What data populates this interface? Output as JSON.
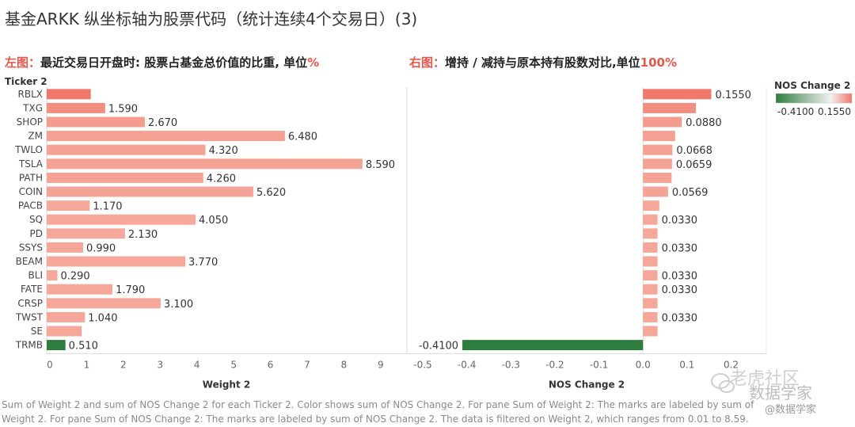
{
  "title": "基金ARKK 纵坐标轴为股票代码（统计连续4个交易日）(3)",
  "subtitle_left": {
    "prefix": "左图：",
    "text": "最近交易日开盘时: 股票占基金总价值的比重, 单位",
    "unit": "%"
  },
  "subtitle_right": {
    "prefix": "右图：",
    "text": "增持 / 减持与原本持有股数对比,单位",
    "unit": "100%"
  },
  "legend": {
    "title": "NOS Change 2",
    "min_label": "-0.4100",
    "max_label": "0.1550",
    "color_min": "#2e7d3e",
    "color_mid": "#f2f2f2",
    "color_max": "#f0786a"
  },
  "footnote": "Sum of Weight 2 and sum of NOS Change 2 for each Ticker 2.  Color shows sum of NOS Change 2.  For pane Sum of Weight 2:  The marks are labeled by sum of Weight 2.  For pane Sum of NOS Change 2:  The marks are labeled by sum of NOS Change 2. The data is filtered on Weight 2, which ranges from 0.01 to 8.59.",
  "watermark": {
    "line1": "老虎社区",
    "line2": "数据学家",
    "line3": "@数据学家"
  },
  "chart_data": [
    {
      "type": "bar",
      "orientation": "horizontal",
      "row_header": "Ticker 2",
      "xlabel": "Weight 2",
      "xlim": [
        0,
        9.8
      ],
      "xticks": [
        0,
        1,
        2,
        3,
        4,
        5,
        6,
        7,
        8,
        9
      ],
      "categories": [
        "RBLX",
        "TXG",
        "SHOP",
        "ZM",
        "TWLO",
        "TSLA",
        "PATH",
        "COIN",
        "PACB",
        "SQ",
        "PD",
        "SSYS",
        "BEAM",
        "BLI",
        "FATE",
        "CRSP",
        "TWST",
        "SE",
        "TRMB"
      ],
      "values": [
        1.2,
        1.59,
        2.67,
        6.48,
        4.32,
        8.59,
        4.26,
        5.62,
        1.17,
        4.05,
        2.13,
        0.99,
        3.77,
        0.29,
        1.79,
        3.1,
        1.04,
        0.95,
        0.51
      ],
      "data_labels": [
        "",
        "1.590",
        "2.670",
        "6.480",
        "4.320",
        "8.590",
        "4.260",
        "5.620",
        "1.170",
        "4.050",
        "2.130",
        "0.990",
        "3.770",
        "0.290",
        "1.790",
        "3.100",
        "1.040",
        "",
        "0.510"
      ],
      "color_by": "NOS Change 2"
    },
    {
      "type": "bar",
      "orientation": "horizontal",
      "xlabel": "NOS Change 2",
      "xlim": [
        -0.5,
        0.28
      ],
      "xticks": [
        -0.5,
        -0.4,
        -0.3,
        -0.2,
        -0.1,
        0.0,
        0.1,
        0.2
      ],
      "xtick_labels": [
        "-0.5",
        "-0.4",
        "-0.3",
        "-0.2",
        "-0.1",
        "0.0",
        "0.1",
        "0.2"
      ],
      "categories": [
        "RBLX",
        "TXG",
        "SHOP",
        "ZM",
        "TWLO",
        "TSLA",
        "PATH",
        "COIN",
        "PACB",
        "SQ",
        "PD",
        "SSYS",
        "BEAM",
        "BLI",
        "FATE",
        "CRSP",
        "TWST",
        "SE",
        "TRMB"
      ],
      "values": [
        0.155,
        0.12,
        0.088,
        0.073,
        0.0668,
        0.0659,
        0.065,
        0.0569,
        0.037,
        0.033,
        0.033,
        0.033,
        0.033,
        0.033,
        0.033,
        0.033,
        0.033,
        0.033,
        -0.41
      ],
      "data_labels": [
        "0.1550",
        "",
        "0.0880",
        "",
        "0.0668",
        "0.0659",
        "",
        "0.0569",
        "",
        "0.0330",
        "",
        "0.0330",
        "",
        "0.0330",
        "0.0330",
        "",
        "0.0330",
        "",
        "-0.4100"
      ]
    }
  ]
}
